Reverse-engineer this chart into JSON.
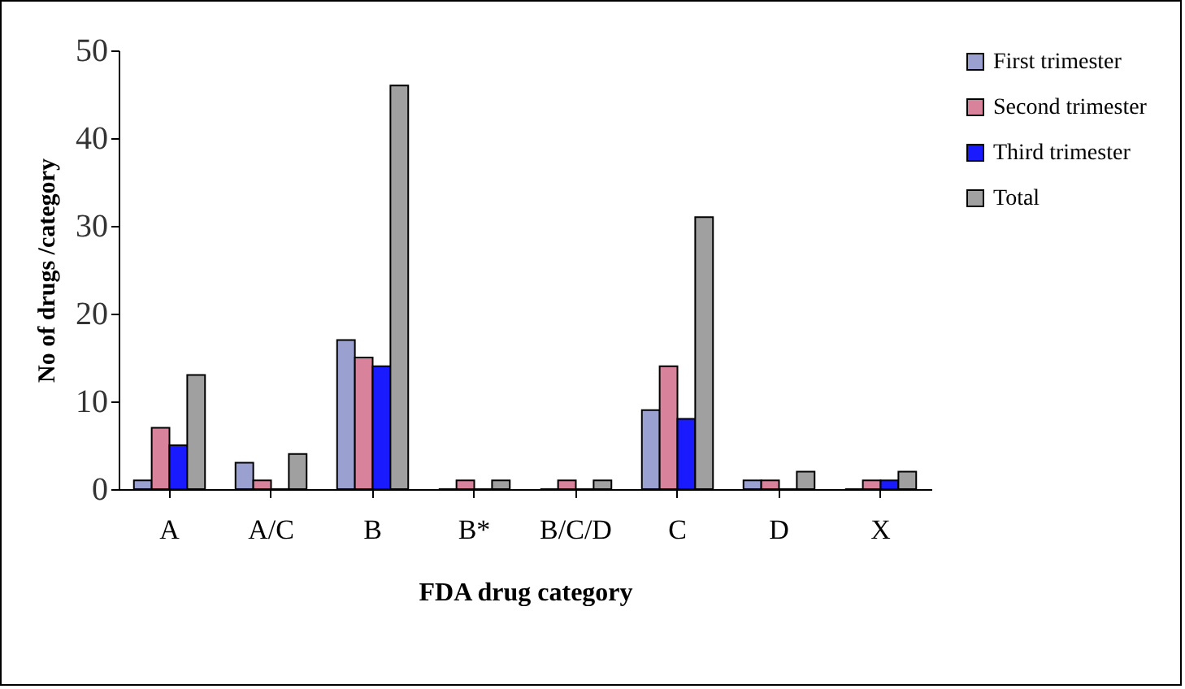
{
  "chart_data": {
    "type": "bar",
    "xlabel": "FDA drug category",
    "ylabel": "No of drugs /category",
    "categories": [
      "A",
      "A/C",
      "B",
      "B*",
      "B/C/D",
      "C",
      "D",
      "X"
    ],
    "series": [
      {
        "name": "First trimester",
        "color": "#9aa0d0",
        "values": [
          1,
          3,
          17,
          0,
          0,
          9,
          1,
          0
        ]
      },
      {
        "name": "Second trimester",
        "color": "#d8829c",
        "values": [
          7,
          1,
          15,
          1,
          1,
          14,
          1,
          1
        ]
      },
      {
        "name": "Third trimester",
        "color": "#1a1aff",
        "values": [
          5,
          0,
          14,
          0,
          0,
          8,
          0,
          1
        ]
      },
      {
        "name": "Total",
        "color": "#a0a0a0",
        "values": [
          13,
          4,
          46,
          1,
          1,
          31,
          2,
          2
        ]
      }
    ],
    "ylim": [
      0,
      50
    ],
    "yticks": [
      0,
      10,
      20,
      30,
      40,
      50
    ],
    "grid": false,
    "legend": "right"
  }
}
